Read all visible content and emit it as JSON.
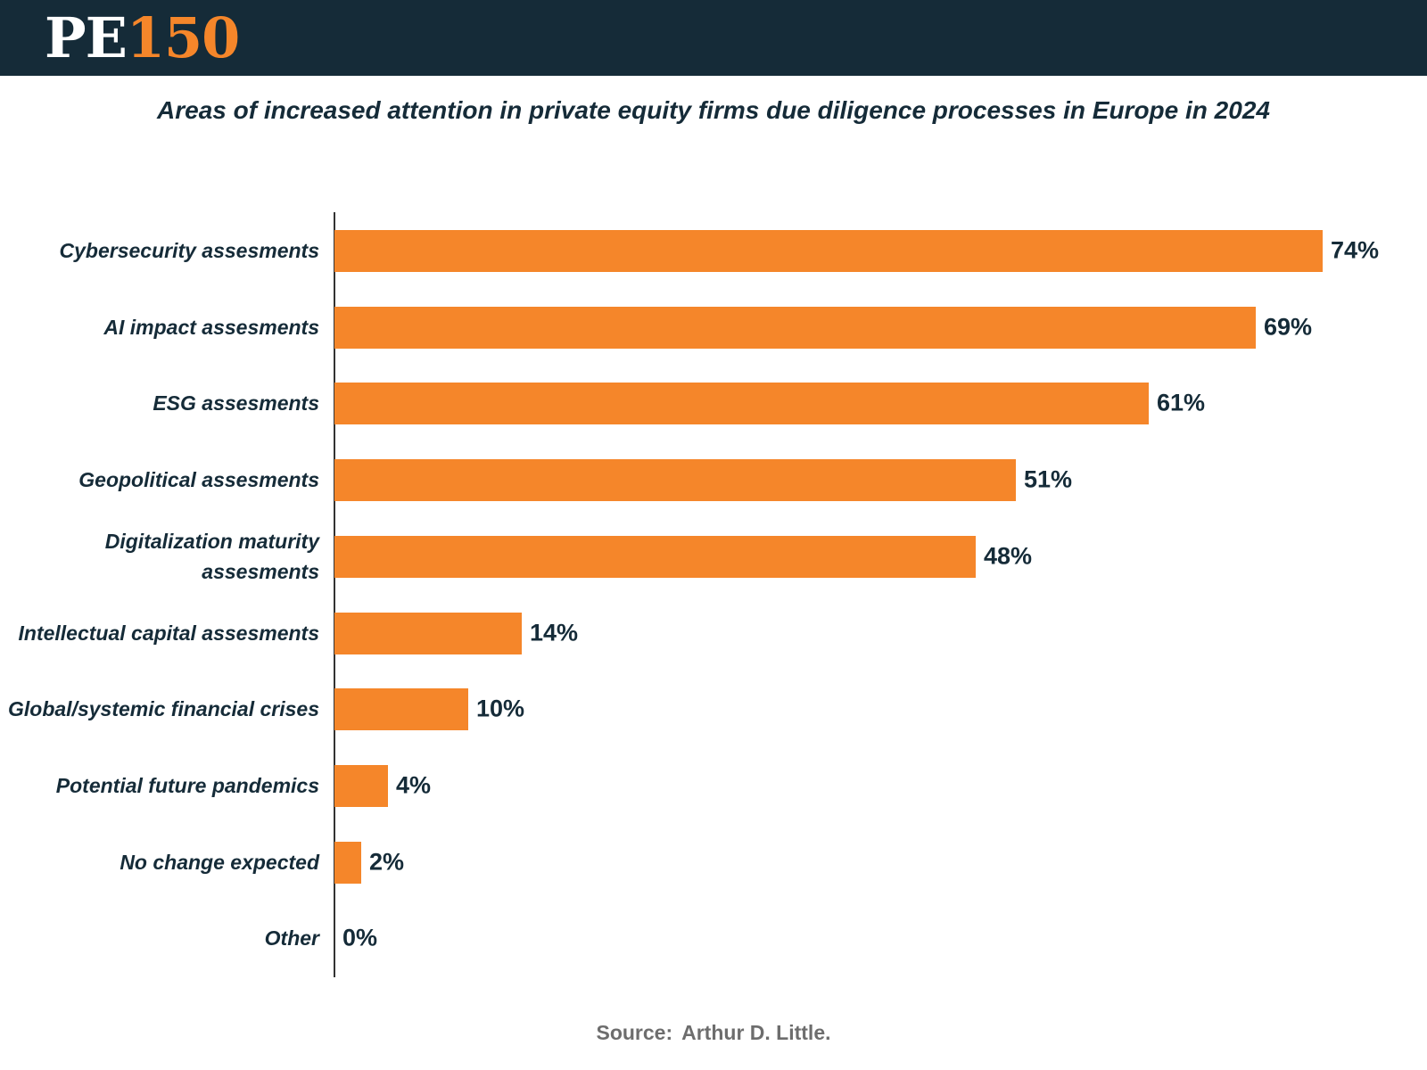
{
  "logo": {
    "part1": "PE",
    "part2": "150"
  },
  "colors": {
    "header_bg": "#152b38",
    "accent": "#f5862a",
    "text": "#152b38",
    "source": "#6d6d6d"
  },
  "chart_data": {
    "type": "bar",
    "orientation": "horizontal",
    "title": "Areas of increased attention in private equity  firms due diligence processes in Europe in 2024",
    "categories": [
      "Cybersecurity assesments",
      "AI impact assesments",
      "ESG assesments",
      "Geopolitical assesments",
      "Digitalization maturity assesments",
      "Intellectual capital assesments",
      "Global/systemic financial crises",
      "Potential future pandemics",
      "No change expected",
      "Other"
    ],
    "values": [
      74,
      69,
      61,
      51,
      48,
      14,
      10,
      4,
      2,
      0
    ],
    "value_labels": [
      "74%",
      "69%",
      "61%",
      "51%",
      "48%",
      "14%",
      "10%",
      "4%",
      "2%",
      "0%"
    ],
    "unit": "%",
    "xlim": [
      0,
      74
    ],
    "xlabel": "",
    "ylabel": "",
    "grid": false,
    "legend": "none"
  },
  "source": {
    "label": "Source:",
    "org": "Arthur D. Little."
  }
}
